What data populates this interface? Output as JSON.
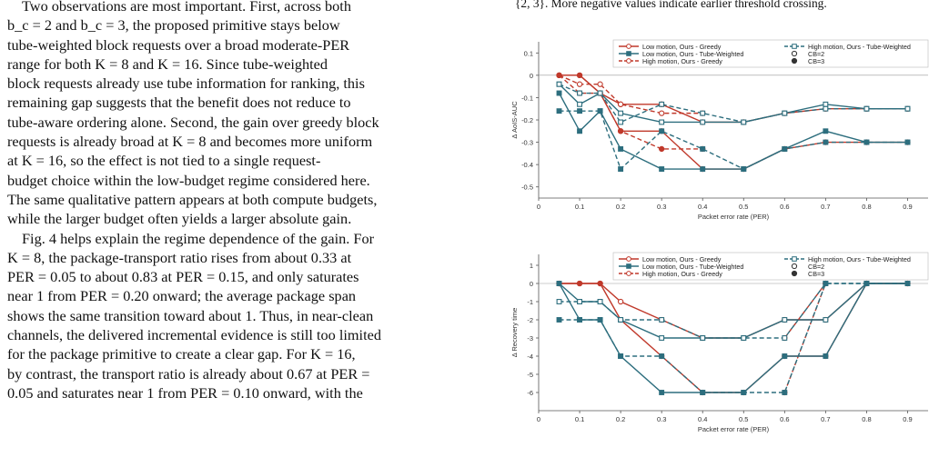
{
  "text_column": {
    "paragraph_1_lines": [
      "Two observations are most important. First, across both",
      "b_c = 2 and b_c = 3, the proposed primitive stays below",
      "tube-weighted block requests over a broad moderate-PER",
      "range for both K = 8 and K = 16. Since tube-weighted",
      "block requests already use tube information for ranking, this",
      "remaining gap suggests that the benefit does not reduce to",
      "tube-aware ordering alone. Second, the gain over greedy block",
      "requests is already broad at K = 8 and becomes more uniform",
      "at K = 16, so the effect is not tied to a single request-",
      "budget choice within the low-budget regime considered here.",
      "The same qualitative pattern appears at both compute budgets,",
      "while the larger budget often yields a larger absolute gain."
    ],
    "paragraph_2_lines": [
      "Fig. 4 helps explain the regime dependence of the gain. For",
      "K = 8, the package-transport ratio rises from about 0.33 at",
      "PER = 0.05 to about 0.83 at PER = 0.15, and only saturates",
      "near 1 from PER = 0.20 onward; the average package span",
      "shows the same transition toward about 1. Thus, in near-clean",
      "channels, the delivered incremental evidence is still too limited",
      "for the package primitive to create a clear gap. For K = 16,",
      "by contrast, the transport ratio is already about 0.67 at PER =",
      "0.05 and saturates near 1 from PER = 0.10 onward, with the"
    ]
  },
  "caption_fragment": {
    "line_1": "{2, 3}. More negative values indicate earlier threshold crossing."
  },
  "colors": {
    "red": "#c0392b",
    "teal": "#2d6e7e",
    "axis": "#555555",
    "grid": "#cccccc"
  },
  "legend": {
    "low_greedy": "Low motion, Ours - Greedy",
    "low_tube": "Low motion, Ours - Tube-Weighted",
    "high_greedy": "High motion, Ours - Greedy",
    "high_tube": "High motion, Ours - Tube-Weighted",
    "cb2": "CB=2",
    "cb3": "CB=3"
  },
  "chart_data": [
    {
      "type": "line",
      "xlabel": "Packet error rate (PER)",
      "ylabel": "Δ AoIS-AUC",
      "x_ticks": [
        0,
        0.1,
        0.2,
        0.3,
        0.4,
        0.5,
        0.6,
        0.7,
        0.8,
        0.9
      ],
      "y_ticks": [
        0.1,
        0,
        -0.1,
        -0.2,
        -0.3,
        -0.4,
        -0.5
      ],
      "xlim": [
        0,
        0.95
      ],
      "ylim": [
        -0.55,
        0.15
      ],
      "legend_placement": "top-right",
      "series": [
        {
          "name": "Low motion, Ours - Greedy",
          "cb": "CB=2",
          "color_key": "red",
          "dash": false,
          "marker": "circle",
          "x": [
            0.05,
            0.1,
            0.15,
            0.2,
            0.3,
            0.4,
            0.5,
            0.6,
            0.7,
            0.8,
            0.9
          ],
          "y": [
            0.0,
            0.0,
            -0.08,
            -0.13,
            -0.13,
            -0.21,
            -0.21,
            -0.17,
            -0.15,
            -0.15,
            -0.15
          ]
        },
        {
          "name": "Low motion, Ours - Greedy",
          "cb": "CB=3",
          "color_key": "red",
          "dash": false,
          "marker": "circle",
          "x": [
            0.05,
            0.1,
            0.15,
            0.2,
            0.3,
            0.4,
            0.5,
            0.6,
            0.7,
            0.8,
            0.9
          ],
          "y": [
            0.0,
            0.0,
            -0.08,
            -0.25,
            -0.25,
            -0.42,
            -0.42,
            -0.33,
            -0.3,
            -0.3,
            -0.3
          ]
        },
        {
          "name": "Low motion, Ours - Tube-Weighted",
          "cb": "CB=2",
          "color_key": "teal",
          "dash": false,
          "marker": "square",
          "x": [
            0.05,
            0.1,
            0.15,
            0.2,
            0.3,
            0.4,
            0.5,
            0.6,
            0.7,
            0.8,
            0.9
          ],
          "y": [
            -0.04,
            -0.13,
            -0.08,
            -0.17,
            -0.21,
            -0.21,
            -0.21,
            -0.17,
            -0.13,
            -0.15,
            -0.15
          ]
        },
        {
          "name": "Low motion, Ours - Tube-Weighted",
          "cb": "CB=3",
          "color_key": "teal",
          "dash": false,
          "marker": "square",
          "x": [
            0.05,
            0.1,
            0.15,
            0.2,
            0.3,
            0.4,
            0.5,
            0.6,
            0.7,
            0.8,
            0.9
          ],
          "y": [
            -0.08,
            -0.25,
            -0.16,
            -0.33,
            -0.42,
            -0.42,
            -0.42,
            -0.33,
            -0.25,
            -0.3,
            -0.3
          ]
        },
        {
          "name": "High motion, Ours - Greedy",
          "cb": "CB=2",
          "color_key": "red",
          "dash": true,
          "marker": "circle",
          "x": [
            0.05,
            0.1,
            0.15,
            0.2,
            0.3,
            0.4
          ],
          "y": [
            0.0,
            -0.04,
            -0.04,
            -0.13,
            -0.17,
            -0.17
          ]
        },
        {
          "name": "High motion, Ours - Greedy",
          "cb": "CB=3",
          "color_key": "red",
          "dash": true,
          "marker": "circle",
          "x": [
            0.05,
            0.1,
            0.15,
            0.2,
            0.3,
            0.4
          ],
          "y": [
            0.0,
            -0.08,
            -0.08,
            -0.25,
            -0.33,
            -0.33
          ]
        },
        {
          "name": "High motion, Ours - Tube-Weighted",
          "cb": "CB=2",
          "color_key": "teal",
          "dash": true,
          "marker": "square",
          "x": [
            0.05,
            0.1,
            0.15,
            0.2,
            0.3,
            0.4,
            0.5,
            0.6,
            0.7,
            0.8,
            0.9
          ],
          "y": [
            -0.04,
            -0.08,
            -0.08,
            -0.21,
            -0.13,
            -0.17,
            -0.21,
            -0.17,
            -0.15,
            -0.15,
            -0.15
          ]
        },
        {
          "name": "High motion, Ours - Tube-Weighted",
          "cb": "CB=3",
          "color_key": "teal",
          "dash": true,
          "marker": "square",
          "x": [
            0.05,
            0.1,
            0.15,
            0.2,
            0.3,
            0.4,
            0.5,
            0.6,
            0.7,
            0.8,
            0.9
          ],
          "y": [
            -0.16,
            -0.16,
            -0.16,
            -0.42,
            -0.25,
            -0.33,
            -0.42,
            -0.33,
            -0.3,
            -0.3,
            -0.3
          ]
        }
      ]
    },
    {
      "type": "line",
      "xlabel": "Packet error rate (PER)",
      "ylabel": "Δ Recovery time",
      "x_ticks": [
        0,
        0.1,
        0.2,
        0.3,
        0.4,
        0.5,
        0.6,
        0.7,
        0.8,
        0.9
      ],
      "y_ticks": [
        1,
        0,
        -1,
        -2,
        -3,
        -4,
        -5,
        -6
      ],
      "xlim": [
        0,
        0.95
      ],
      "ylim": [
        -7,
        1.6
      ],
      "legend_placement": "top-right",
      "series": [
        {
          "name": "Low motion, Ours - Greedy",
          "cb": "CB=2",
          "color_key": "red",
          "dash": false,
          "marker": "circle",
          "x": [
            0.05,
            0.1,
            0.15,
            0.2,
            0.3,
            0.4,
            0.5,
            0.6,
            0.7,
            0.8,
            0.9
          ],
          "y": [
            0,
            0,
            0,
            -1,
            -2,
            -3,
            -3,
            -2,
            -2,
            0,
            0
          ]
        },
        {
          "name": "Low motion, Ours - Greedy",
          "cb": "CB=3",
          "color_key": "red",
          "dash": false,
          "marker": "circle",
          "x": [
            0.05,
            0.1,
            0.15,
            0.2,
            0.3,
            0.4,
            0.5,
            0.6,
            0.7,
            0.8,
            0.9
          ],
          "y": [
            0,
            0,
            0,
            -2,
            -4,
            -6,
            -6,
            -4,
            -4,
            0,
            0
          ]
        },
        {
          "name": "Low motion, Ours - Tube-Weighted",
          "cb": "CB=2",
          "color_key": "teal",
          "dash": false,
          "marker": "square",
          "x": [
            0.05,
            0.1,
            0.15,
            0.2,
            0.3,
            0.4,
            0.5,
            0.6,
            0.7,
            0.8,
            0.9
          ],
          "y": [
            0,
            -1,
            -1,
            -2,
            -3,
            -3,
            -3,
            -2,
            -2,
            0,
            0
          ]
        },
        {
          "name": "Low motion, Ours - Tube-Weighted",
          "cb": "CB=3",
          "color_key": "teal",
          "dash": false,
          "marker": "square",
          "x": [
            0.05,
            0.1,
            0.15,
            0.2,
            0.3,
            0.4,
            0.5,
            0.6,
            0.7,
            0.8,
            0.9
          ],
          "y": [
            0,
            -2,
            -2,
            -4,
            -6,
            -6,
            -6,
            -4,
            -4,
            0,
            0
          ]
        },
        {
          "name": "High motion, Ours - Greedy",
          "cb": "CB=2",
          "color_key": "red",
          "dash": true,
          "marker": "circle",
          "x": [
            0.6,
            0.7
          ],
          "y": [
            -3,
            0
          ]
        },
        {
          "name": "High motion, Ours - Greedy",
          "cb": "CB=3",
          "color_key": "red",
          "dash": true,
          "marker": "circle",
          "x": [
            0.6,
            0.7
          ],
          "y": [
            -6,
            0
          ]
        },
        {
          "name": "High motion, Ours - Tube-Weighted",
          "cb": "CB=2",
          "color_key": "teal",
          "dash": true,
          "marker": "square",
          "x": [
            0.05,
            0.1,
            0.15,
            0.2,
            0.3,
            0.4,
            0.5,
            0.6,
            0.7,
            0.8,
            0.9
          ],
          "y": [
            -1,
            -1,
            -1,
            -2,
            -2,
            -3,
            -3,
            -3,
            0,
            0,
            0
          ]
        },
        {
          "name": "High motion, Ours - Tube-Weighted",
          "cb": "CB=3",
          "color_key": "teal",
          "dash": true,
          "marker": "square",
          "x": [
            0.05,
            0.1,
            0.15,
            0.2,
            0.3,
            0.4,
            0.5,
            0.6,
            0.7,
            0.8,
            0.9
          ],
          "y": [
            -2,
            -2,
            -2,
            -4,
            -4,
            -6,
            -6,
            -6,
            0,
            0,
            0
          ]
        }
      ]
    }
  ]
}
